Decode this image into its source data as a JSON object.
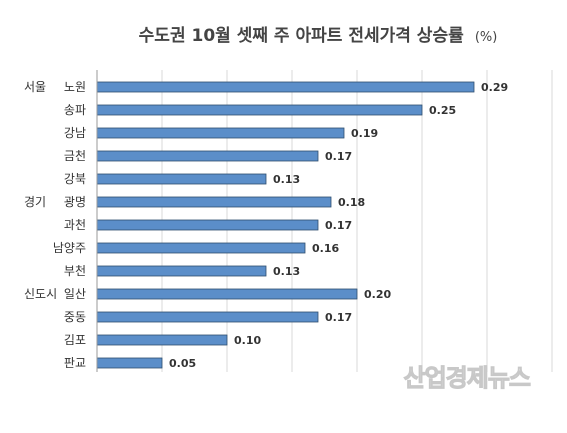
{
  "chart_data": {
    "type": "bar",
    "orientation": "horizontal",
    "title": "수도권 10월 셋째 주 아파트 전세가격 상승률",
    "unit": "(%)",
    "groups": [
      {
        "label": "서울",
        "start": 0
      },
      {
        "label": "경기",
        "start": 5
      },
      {
        "label": "신도시",
        "start": 9
      }
    ],
    "categories": [
      "노원",
      "송파",
      "강남",
      "금천",
      "강북",
      "광명",
      "과천",
      "남양주",
      "부천",
      "일산",
      "중동",
      "김포",
      "판교"
    ],
    "values": [
      0.29,
      0.25,
      0.19,
      0.17,
      0.13,
      0.18,
      0.17,
      0.16,
      0.13,
      0.2,
      0.17,
      0.1,
      0.05
    ],
    "value_labels": [
      "0.29",
      "0.25",
      "0.19",
      "0.17",
      "0.13",
      "0.18",
      "0.17",
      "0.16",
      "0.13",
      "0.20",
      "0.17",
      "0.10",
      "0.05"
    ],
    "xlim": [
      0,
      0.35
    ],
    "grid": "vertical",
    "bar_color": "#5b8ec9",
    "bar_edge_color": "#2f4f6f"
  },
  "watermark": "산업경제뉴스"
}
